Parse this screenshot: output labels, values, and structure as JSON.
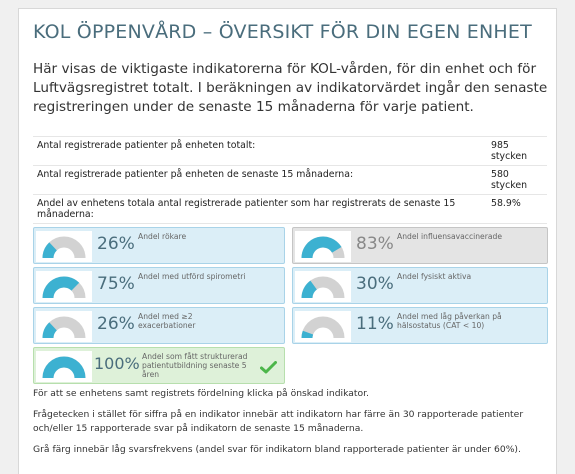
{
  "page": {
    "title": "KOL ÖPPENVÅRD – ÖVERSIKT FÖR DIN EGEN ENHET",
    "intro": "Här visas de viktigaste indikatorerna för KOL-vården, för din enhet och för Luftvägsregistret totalt. I beräkningen av indikatorvärdet ingår den senaste registreringen under de senaste 15 månaderna för varje patient."
  },
  "stats": [
    {
      "label": "Antal registrerade patienter på enheten totalt:",
      "value": "985 stycken"
    },
    {
      "label": "Antal registrerade patienter på enheten de senaste 15 månaderna:",
      "value": "580 stycken"
    },
    {
      "label": "Andel av enhetens totala antal registrerade patienter som har registrerats de senaste 15 månaderna:",
      "value": "58.9%"
    }
  ],
  "indicators": [
    {
      "value": "26%",
      "fraction": 0.26,
      "label": "Andel rökare",
      "status": "blue"
    },
    {
      "value": "83%",
      "fraction": 0.83,
      "label": "Andel influensavaccinerade",
      "status": "grey"
    },
    {
      "value": "75%",
      "fraction": 0.75,
      "label": "Andel med utförd spirometri",
      "status": "blue"
    },
    {
      "value": "30%",
      "fraction": 0.3,
      "label": "Andel fysiskt aktiva",
      "status": "blue"
    },
    {
      "value": "26%",
      "fraction": 0.26,
      "label": "Andel med ≥2 exacerbationer",
      "status": "blue"
    },
    {
      "value": "11%",
      "fraction": 0.11,
      "label": "Andel med låg påverkan på hälsostatus (CAT < 10)",
      "status": "blue"
    },
    {
      "value": "100%",
      "fraction": 1.0,
      "label": "Andel som fått strukturerad patientutbildning senaste 5 åren",
      "status": "green"
    }
  ],
  "notes": [
    "För att se enhetens samt registrets fördelning klicka på önskad indikator.",
    "Frågetecken i stället för siffra på en indikator innebär att indikatorn har färre än 30 rapporterade patienter och/eller 15 rapporterade svar på indikatorn de senaste 15 månaderna.",
    "Grå färg innebär låg svarsfrekvens (andel svar för indikatorn bland rapporterade patienter är under 60%)."
  ],
  "colors": {
    "gauge_fill": "#3cb1d1",
    "gauge_track": "#d2d2d2",
    "check": "#4cb64a"
  },
  "icons": {
    "check": "check-icon"
  }
}
